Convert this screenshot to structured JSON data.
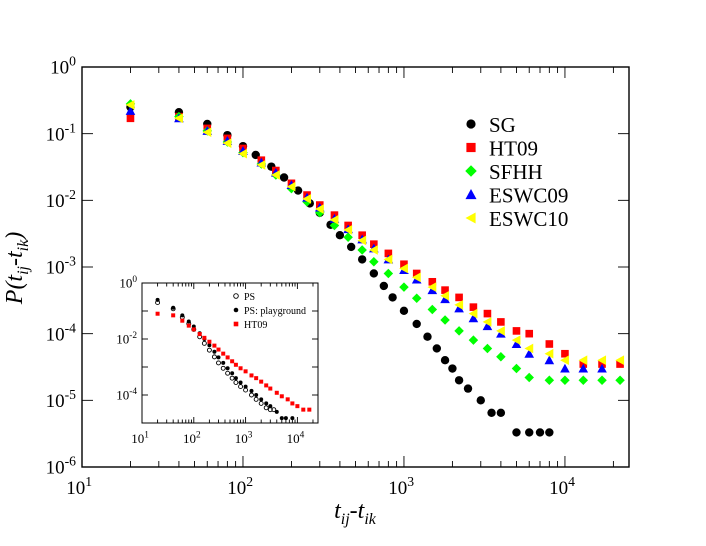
{
  "chart_data": [
    {
      "type": "scatter",
      "title": "",
      "xlabel": "t_ij-t_ik",
      "ylabel": "P(t_ij-t_ik)",
      "x_scale": "log",
      "y_scale": "log",
      "xlim": [
        10,
        25000
      ],
      "ylim": [
        1e-06,
        1
      ],
      "x_ticks": [
        10,
        100,
        1000,
        10000
      ],
      "y_ticks": [
        1,
        0.1,
        0.01,
        0.001,
        0.0001,
        1e-05,
        1e-06
      ],
      "grid": false,
      "legend_position": "top-right",
      "series": [
        {
          "name": "SG",
          "color": "#000000",
          "marker": "circle",
          "points": [
            [
              20,
              0.25
            ],
            [
              40,
              0.21
            ],
            [
              60,
              0.14
            ],
            [
              80,
              0.095
            ],
            [
              100,
              0.065
            ],
            [
              120,
              0.048
            ],
            [
              150,
              0.032
            ],
            [
              180,
              0.022
            ],
            [
              220,
              0.014
            ],
            [
              260,
              0.009
            ],
            [
              300,
              0.0065
            ],
            [
              350,
              0.0043
            ],
            [
              400,
              0.003
            ],
            [
              470,
              0.002
            ],
            [
              550,
              0.0013
            ],
            [
              650,
              0.0008
            ],
            [
              750,
              0.00052
            ],
            [
              850,
              0.00035
            ],
            [
              1000,
              0.00022
            ],
            [
              1200,
              0.00014
            ],
            [
              1400,
              9e-05
            ],
            [
              1600,
              6e-05
            ],
            [
              1800,
              4e-05
            ],
            [
              2000,
              3e-05
            ],
            [
              2200,
              2e-05
            ],
            [
              2500,
              1.5e-05
            ],
            [
              3000,
              1e-05
            ],
            [
              3500,
              6.5e-06
            ],
            [
              4000,
              6.5e-06
            ],
            [
              5000,
              3.3e-06
            ],
            [
              6000,
              3.3e-06
            ],
            [
              7000,
              3.3e-06
            ],
            [
              8000,
              3.3e-06
            ]
          ]
        },
        {
          "name": "HT09",
          "color": "#ff0000",
          "marker": "square",
          "points": [
            [
              20,
              0.17
            ],
            [
              40,
              0.18
            ],
            [
              60,
              0.12
            ],
            [
              80,
              0.085
            ],
            [
              100,
              0.06
            ],
            [
              130,
              0.04
            ],
            [
              160,
              0.028
            ],
            [
              200,
              0.018
            ],
            [
              250,
              0.012
            ],
            [
              300,
              0.0085
            ],
            [
              370,
              0.006
            ],
            [
              450,
              0.0042
            ],
            [
              550,
              0.003
            ],
            [
              650,
              0.0022
            ],
            [
              800,
              0.0016
            ],
            [
              1000,
              0.0011
            ],
            [
              1200,
              0.0008
            ],
            [
              1500,
              0.0006
            ],
            [
              1800,
              0.00045
            ],
            [
              2200,
              0.00035
            ],
            [
              2700,
              0.00025
            ],
            [
              3300,
              0.0002
            ],
            [
              4000,
              0.00015
            ],
            [
              5000,
              0.00011
            ],
            [
              6000,
              0.0001
            ],
            [
              8000,
              7e-05
            ],
            [
              10000,
              5e-05
            ],
            [
              13000,
              3.5e-05
            ],
            [
              17000,
              3.5e-05
            ],
            [
              22000,
              3.5e-05
            ]
          ]
        },
        {
          "name": "SFHH",
          "color": "#00ff00",
          "marker": "diamond",
          "points": [
            [
              20,
              0.28
            ],
            [
              40,
              0.18
            ],
            [
              60,
              0.11
            ],
            [
              80,
              0.075
            ],
            [
              100,
              0.052
            ],
            [
              130,
              0.035
            ],
            [
              160,
              0.024
            ],
            [
              200,
              0.015
            ],
            [
              250,
              0.0095
            ],
            [
              300,
              0.0065
            ],
            [
              370,
              0.0042
            ],
            [
              450,
              0.0028
            ],
            [
              550,
              0.0018
            ],
            [
              650,
              0.0012
            ],
            [
              800,
              0.0008
            ],
            [
              1000,
              0.0005
            ],
            [
              1200,
              0.00034
            ],
            [
              1500,
              0.00023
            ],
            [
              1800,
              0.00016
            ],
            [
              2200,
              0.00011
            ],
            [
              2700,
              8e-05
            ],
            [
              3300,
              6e-05
            ],
            [
              4000,
              4.5e-05
            ],
            [
              5000,
              3e-05
            ],
            [
              6000,
              2.2e-05
            ],
            [
              8000,
              2e-05
            ],
            [
              10000,
              2e-05
            ],
            [
              13000,
              2e-05
            ],
            [
              17000,
              2e-05
            ],
            [
              22000,
              2e-05
            ]
          ]
        },
        {
          "name": "ESWC09",
          "color": "#0000ff",
          "marker": "triangle-up",
          "points": [
            [
              20,
              0.22
            ],
            [
              40,
              0.17
            ],
            [
              60,
              0.11
            ],
            [
              80,
              0.078
            ],
            [
              100,
              0.055
            ],
            [
              130,
              0.037
            ],
            [
              160,
              0.026
            ],
            [
              200,
              0.017
            ],
            [
              250,
              0.011
            ],
            [
              300,
              0.0078
            ],
            [
              370,
              0.0053
            ],
            [
              450,
              0.0037
            ],
            [
              550,
              0.0026
            ],
            [
              650,
              0.0019
            ],
            [
              800,
              0.0013
            ],
            [
              1000,
              0.0009
            ],
            [
              1200,
              0.00065
            ],
            [
              1500,
              0.00045
            ],
            [
              1800,
              0.00033
            ],
            [
              2200,
              0.00024
            ],
            [
              2700,
              0.00017
            ],
            [
              3300,
              0.00013
            ],
            [
              4000,
              0.0001
            ],
            [
              5000,
              7e-05
            ],
            [
              6000,
              5e-05
            ],
            [
              8000,
              4e-05
            ],
            [
              10000,
              3e-05
            ],
            [
              13000,
              3e-05
            ],
            [
              17000,
              3e-05
            ]
          ]
        },
        {
          "name": "ESWC10",
          "color": "#ffff00",
          "marker": "triangle-left",
          "points": [
            [
              20,
              0.27
            ],
            [
              40,
              0.17
            ],
            [
              60,
              0.105
            ],
            [
              80,
              0.072
            ],
            [
              100,
              0.05
            ],
            [
              130,
              0.034
            ],
            [
              160,
              0.024
            ],
            [
              200,
              0.016
            ],
            [
              250,
              0.0105
            ],
            [
              300,
              0.0074
            ],
            [
              370,
              0.0051
            ],
            [
              450,
              0.0036
            ],
            [
              550,
              0.0025
            ],
            [
              650,
              0.0018
            ],
            [
              800,
              0.0013
            ],
            [
              1000,
              0.00095
            ],
            [
              1200,
              0.0007
            ],
            [
              1500,
              0.0005
            ],
            [
              1800,
              0.00037
            ],
            [
              2200,
              0.00027
            ],
            [
              2700,
              0.0002
            ],
            [
              3300,
              0.00015
            ],
            [
              4000,
              0.00011
            ],
            [
              5000,
              8e-05
            ],
            [
              6000,
              6e-05
            ],
            [
              8000,
              5e-05
            ],
            [
              10000,
              4e-05
            ],
            [
              13000,
              4e-05
            ],
            [
              17000,
              4e-05
            ],
            [
              22000,
              4e-05
            ]
          ]
        }
      ]
    },
    {
      "type": "scatter",
      "title": "",
      "xlabel": "",
      "ylabel": "",
      "x_scale": "log",
      "y_scale": "log",
      "xlim": [
        10,
        25000
      ],
      "ylim": [
        1e-05,
        1
      ],
      "x_ticks": [
        10,
        100,
        1000,
        10000
      ],
      "y_ticks": [
        1,
        0.01,
        0.0001
      ],
      "grid": false,
      "legend_position": "top-right",
      "series": [
        {
          "name": "PS",
          "color": "#000000",
          "marker": "open-circle",
          "points": [
            [
              20,
              0.2
            ],
            [
              40,
              0.12
            ],
            [
              60,
              0.06
            ],
            [
              80,
              0.035
            ],
            [
              100,
              0.022
            ],
            [
              130,
              0.012
            ],
            [
              160,
              0.007
            ],
            [
              200,
              0.004
            ],
            [
              250,
              0.0023
            ],
            [
              300,
              0.0014
            ],
            [
              370,
              0.0009
            ],
            [
              450,
              0.0006
            ],
            [
              550,
              0.0004
            ],
            [
              650,
              0.00028
            ],
            [
              800,
              0.0002
            ],
            [
              1000,
              0.00015
            ],
            [
              1300,
              0.0001
            ],
            [
              1600,
              7e-05
            ],
            [
              2000,
              5e-05
            ],
            [
              2500,
              3.5e-05
            ],
            [
              3000,
              3e-05
            ],
            [
              3500,
              3e-05
            ]
          ]
        },
        {
          "name": "PS: playground",
          "color": "#000000",
          "marker": "circle",
          "points": [
            [
              20,
              0.25
            ],
            [
              40,
              0.13
            ],
            [
              60,
              0.07
            ],
            [
              80,
              0.042
            ],
            [
              100,
              0.028
            ],
            [
              130,
              0.016
            ],
            [
              160,
              0.01
            ],
            [
              200,
              0.006
            ],
            [
              250,
              0.0035
            ],
            [
              300,
              0.0022
            ],
            [
              370,
              0.0014
            ],
            [
              450,
              0.0009
            ],
            [
              550,
              0.0006
            ],
            [
              650,
              0.0004
            ],
            [
              800,
              0.00028
            ],
            [
              1000,
              0.0002
            ],
            [
              1300,
              0.00014
            ],
            [
              1600,
              0.0001
            ],
            [
              2000,
              7e-05
            ],
            [
              2500,
              5e-05
            ],
            [
              3000,
              4e-05
            ],
            [
              4000,
              2.5e-05
            ],
            [
              5000,
              1.5e-05
            ],
            [
              6000,
              1.5e-05
            ],
            [
              8000,
              1.5e-05
            ]
          ]
        },
        {
          "name": "HT09",
          "color": "#ff0000",
          "marker": "square",
          "points": [
            [
              20,
              0.08
            ],
            [
              40,
              0.07
            ],
            [
              60,
              0.045
            ],
            [
              80,
              0.03
            ],
            [
              100,
              0.022
            ],
            [
              130,
              0.015
            ],
            [
              160,
              0.011
            ],
            [
              200,
              0.008
            ],
            [
              250,
              0.0058
            ],
            [
              300,
              0.0042
            ],
            [
              370,
              0.003
            ],
            [
              450,
              0.0022
            ],
            [
              550,
              0.0016
            ],
            [
              650,
              0.0012
            ],
            [
              800,
              0.0009
            ],
            [
              1000,
              0.0007
            ],
            [
              1300,
              0.0005
            ],
            [
              1600,
              0.0004
            ],
            [
              2000,
              0.0003
            ],
            [
              2500,
              0.00022
            ],
            [
              3000,
              0.00017
            ],
            [
              4000,
              0.00012
            ],
            [
              5000,
              9e-05
            ],
            [
              6500,
              7e-05
            ],
            [
              8000,
              5e-05
            ],
            [
              10000,
              4e-05
            ],
            [
              13000,
              3e-05
            ],
            [
              17000,
              3e-05
            ]
          ]
        }
      ]
    }
  ],
  "main_axes": {
    "x_tick_labels": [
      {
        "base": "10",
        "exp": "1"
      },
      {
        "base": "10",
        "exp": "2"
      },
      {
        "base": "10",
        "exp": "3"
      },
      {
        "base": "10",
        "exp": "4"
      }
    ],
    "y_tick_labels": [
      {
        "base": "10",
        "exp": "0"
      },
      {
        "base": "10",
        "exp": "-1"
      },
      {
        "base": "10",
        "exp": "-2"
      },
      {
        "base": "10",
        "exp": "-3"
      },
      {
        "base": "10",
        "exp": "-4"
      },
      {
        "base": "10",
        "exp": "-5"
      },
      {
        "base": "10",
        "exp": "-6"
      }
    ],
    "xlabel_main": "t",
    "xlabel_sub1": "ij",
    "xlabel_dash": "-t",
    "xlabel_sub2": "ik",
    "ylabel_P": "P(t",
    "ylabel_sub1": "ij",
    "ylabel_dash": "-t",
    "ylabel_sub2": "ik",
    "ylabel_close": ")"
  },
  "inset_axes": {
    "x_tick_labels": [
      {
        "base": "10",
        "exp": "1"
      },
      {
        "base": "10",
        "exp": "2"
      },
      {
        "base": "10",
        "exp": "3"
      },
      {
        "base": "10",
        "exp": "4"
      }
    ],
    "y_tick_labels": [
      {
        "base": "10",
        "exp": "0"
      },
      {
        "base": "10",
        "exp": "-2"
      },
      {
        "base": "10",
        "exp": "-4"
      }
    ]
  }
}
